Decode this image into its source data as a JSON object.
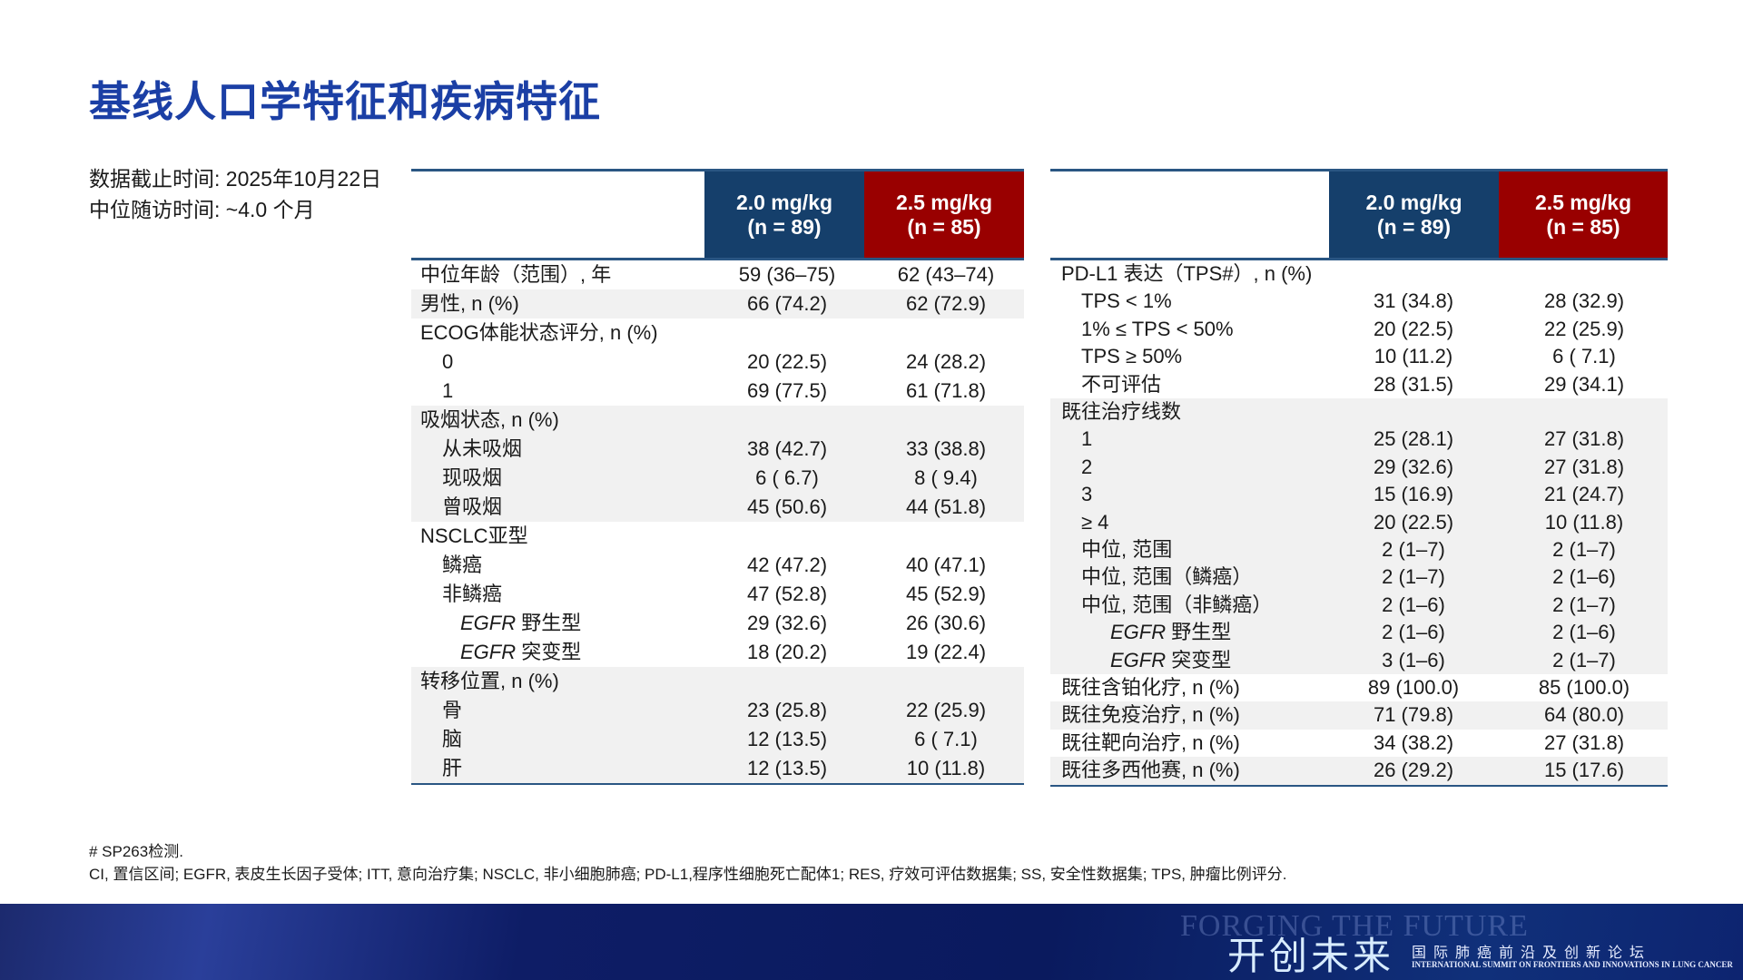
{
  "title": "基线人口学特征和疾病特征",
  "info": {
    "cutoff": "数据截止时间: 2025年10月22日",
    "followup": "中位随访时间: ~4.0 个月"
  },
  "colors": {
    "title": "#1b3fa5",
    "header_blue": "#153f6b",
    "header_red": "#990000",
    "row_shade": "#f1f1f1"
  },
  "left_table": {
    "headers": [
      {
        "dose": "2.0 mg/kg",
        "n": "(n = 89)"
      },
      {
        "dose": "2.5 mg/kg",
        "n": "(n = 85)"
      }
    ],
    "rows": [
      {
        "label": "中位年龄（范围）, 年",
        "indent": 0,
        "shade": false,
        "v1": "59 (36–75)",
        "v2": "62 (43–74)"
      },
      {
        "label": "男性, n (%)",
        "indent": 0,
        "shade": true,
        "v1": "66 (74.2)",
        "v2": "62 (72.9)"
      },
      {
        "label": "ECOG体能状态评分, n (%)",
        "indent": 0,
        "shade": false,
        "v1": "",
        "v2": ""
      },
      {
        "label": "0",
        "indent": 1,
        "shade": false,
        "v1": "20 (22.5)",
        "v2": "24 (28.2)"
      },
      {
        "label": "1",
        "indent": 1,
        "shade": false,
        "v1": "69 (77.5)",
        "v2": "61 (71.8)"
      },
      {
        "label": "吸烟状态, n (%)",
        "indent": 0,
        "shade": true,
        "v1": "",
        "v2": ""
      },
      {
        "label": "从未吸烟",
        "indent": 1,
        "shade": true,
        "v1": "38 (42.7)",
        "v2": "33 (38.8)"
      },
      {
        "label": "现吸烟",
        "indent": 1,
        "shade": true,
        "v1": "6 ( 6.7)",
        "v2": "8 ( 9.4)"
      },
      {
        "label": "曾吸烟",
        "indent": 1,
        "shade": true,
        "v1": "45 (50.6)",
        "v2": "44 (51.8)"
      },
      {
        "label": "NSCLC亚型",
        "indent": 0,
        "shade": false,
        "v1": "",
        "v2": ""
      },
      {
        "label": "鳞癌",
        "indent": 1,
        "shade": false,
        "v1": "42 (47.2)",
        "v2": "40 (47.1)"
      },
      {
        "label": "非鳞癌",
        "indent": 1,
        "shade": false,
        "v1": "47 (52.8)",
        "v2": "45 (52.9)"
      },
      {
        "label": "野生型",
        "gene": "EGFR",
        "indent": 2,
        "shade": false,
        "v1": "29 (32.6)",
        "v2": "26 (30.6)"
      },
      {
        "label": "突变型",
        "gene": "EGFR",
        "indent": 2,
        "shade": false,
        "v1": "18 (20.2)",
        "v2": "19 (22.4)"
      },
      {
        "label": "转移位置, n (%)",
        "indent": 0,
        "shade": true,
        "v1": "",
        "v2": ""
      },
      {
        "label": "骨",
        "indent": 1,
        "shade": true,
        "v1": "23 (25.8)",
        "v2": "22 (25.9)"
      },
      {
        "label": "脑",
        "indent": 1,
        "shade": true,
        "v1": "12 (13.5)",
        "v2": "6 ( 7.1)"
      },
      {
        "label": "肝",
        "indent": 1,
        "shade": true,
        "v1": "12 (13.5)",
        "v2": "10 (11.8)"
      }
    ]
  },
  "right_table": {
    "headers": [
      {
        "dose": "2.0 mg/kg",
        "n": "(n = 89)"
      },
      {
        "dose": "2.5 mg/kg",
        "n": "(n = 85)"
      }
    ],
    "rows": [
      {
        "label": "PD-L1 表达（TPS#）, n (%)",
        "indent": 0,
        "shade": false,
        "v1": "",
        "v2": ""
      },
      {
        "label": "TPS < 1%",
        "indent": 1,
        "shade": false,
        "v1": "31 (34.8)",
        "v2": "28 (32.9)"
      },
      {
        "label": "1% ≤ TPS < 50%",
        "indent": 1,
        "shade": false,
        "v1": "20 (22.5)",
        "v2": "22 (25.9)"
      },
      {
        "label": "TPS ≥ 50%",
        "indent": 1,
        "shade": false,
        "v1": "10 (11.2)",
        "v2": "6 ( 7.1)"
      },
      {
        "label": "不可评估",
        "indent": 1,
        "shade": false,
        "v1": "28 (31.5)",
        "v2": "29 (34.1)"
      },
      {
        "label": "既往治疗线数",
        "indent": 0,
        "shade": true,
        "v1": "",
        "v2": ""
      },
      {
        "label": "1",
        "indent": 1,
        "shade": true,
        "v1": "25 (28.1)",
        "v2": "27 (31.8)"
      },
      {
        "label": "2",
        "indent": 1,
        "shade": true,
        "v1": "29 (32.6)",
        "v2": "27 (31.8)"
      },
      {
        "label": "3",
        "indent": 1,
        "shade": true,
        "v1": "15 (16.9)",
        "v2": "21 (24.7)"
      },
      {
        "label": "≥ 4",
        "indent": 1,
        "shade": true,
        "v1": "20 (22.5)",
        "v2": "10 (11.8)"
      },
      {
        "label": "中位, 范围",
        "indent": 1,
        "shade": true,
        "v1": "2 (1–7)",
        "v2": "2 (1–7)"
      },
      {
        "label": "中位, 范围（鳞癌）",
        "indent": 1,
        "shade": true,
        "v1": "2 (1–7)",
        "v2": "2 (1–6)"
      },
      {
        "label": "中位, 范围（非鳞癌）",
        "indent": 1,
        "shade": true,
        "v1": "2 (1–6)",
        "v2": "2 (1–7)"
      },
      {
        "label": "野生型",
        "gene": "EGFR",
        "indent": 2,
        "shade": true,
        "v1": "2 (1–6)",
        "v2": "2 (1–6)"
      },
      {
        "label": "突变型",
        "gene": "EGFR",
        "indent": 2,
        "shade": true,
        "v1": "3 (1–6)",
        "v2": "2 (1–7)"
      },
      {
        "label": "既往含铂化疗, n (%)",
        "indent": 0,
        "shade": false,
        "v1": "89 (100.0)",
        "v2": "85 (100.0)"
      },
      {
        "label": "既往免疫治疗, n (%)",
        "indent": 0,
        "shade": true,
        "v1": "71 (79.8)",
        "v2": "64 (80.0)"
      },
      {
        "label": "既往靶向治疗, n (%)",
        "indent": 0,
        "shade": false,
        "v1": "34 (38.2)",
        "v2": "27 (31.8)"
      },
      {
        "label": "既往多西他赛, n (%)",
        "indent": 0,
        "shade": true,
        "v1": "26 (29.2)",
        "v2": "15 (17.6)"
      }
    ]
  },
  "footnotes": {
    "note1": "# SP263检测.",
    "note2": "CI, 置信区间; EGFR, 表皮生长因子受体; ITT, 意向治疗集; NSCLC, 非小细胞肺癌; PD-L1,程序性细胞死亡配体1; RES, 疗效可评估数据集; SS, 安全性数据集; TPS, 肿瘤比例评分."
  },
  "banner": {
    "watermark": "FORGING THE FUTURE",
    "logo_cn": "开创未来",
    "subtitle_cn": "国际肺癌前沿及创新论坛",
    "subtitle_en": "INTERNATIONAL SUMMIT ON FRONTIERS AND INNOVATIONS IN LUNG CANCER"
  }
}
